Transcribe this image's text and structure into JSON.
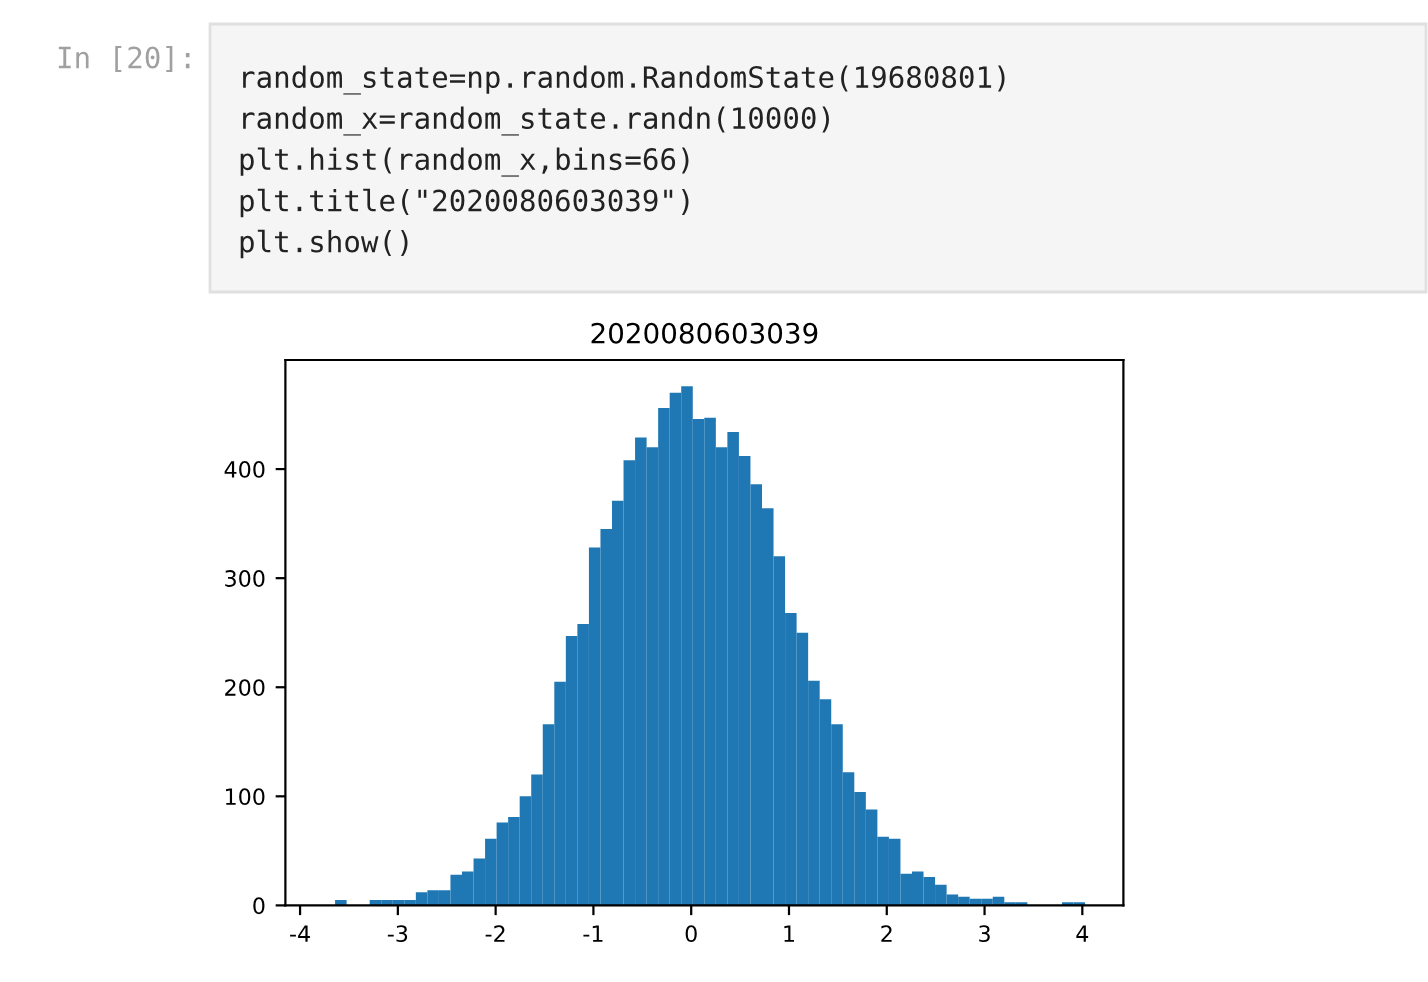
{
  "chart_data": {
    "type": "histogram",
    "title": "2020080603039",
    "annotations": [
      "In [20]:",
      "random_state=np.random.RandomState(19680801)",
      "random_x=random_state.randn(10000)",
      "plt.hist(random_x,bins=66)",
      "plt.title(\"2020080603039\")",
      "plt.show()"
    ],
    "bins": [
      -3.76,
      -3.642,
      -3.524,
      -3.406,
      -3.288,
      -3.17,
      -3.052,
      -2.934,
      -2.816,
      -2.698,
      -2.58,
      -2.462,
      -2.344,
      -2.226,
      -2.108,
      -1.99,
      -1.872,
      -1.754,
      -1.636,
      -1.518,
      -1.4,
      -1.282,
      -1.164,
      -1.046,
      -0.928,
      -0.81,
      -0.692,
      -0.574,
      -0.456,
      -0.338,
      -0.22,
      -0.102,
      0.016,
      0.134,
      0.252,
      0.37,
      0.488,
      0.606,
      0.724,
      0.842,
      0.96,
      1.078,
      1.196,
      1.314,
      1.432,
      1.55,
      1.668,
      1.786,
      1.904,
      2.022,
      2.14,
      2.258,
      2.376,
      2.494,
      2.612,
      2.73,
      2.848,
      2.966,
      3.084,
      3.202,
      3.32,
      3.438,
      3.556,
      3.674,
      3.792,
      3.91,
      4.028
    ],
    "values": [
      null,
      5,
      null,
      null,
      5,
      5,
      5,
      5,
      12,
      14,
      14,
      28,
      31,
      43,
      61,
      76,
      81,
      100,
      120,
      166,
      205,
      247,
      258,
      328,
      345,
      371,
      408,
      429,
      420,
      456,
      470,
      476,
      446,
      447,
      420,
      434,
      412,
      386,
      364,
      320,
      268,
      250,
      206,
      189,
      166,
      122,
      104,
      88,
      63,
      61,
      29,
      31,
      26,
      19,
      10,
      8,
      6,
      6,
      8,
      3,
      3,
      0,
      0,
      0,
      3,
      3
    ],
    "color": "#1f77b4",
    "xlim": [
      -4.15,
      4.42
    ],
    "ylim": [
      0,
      500
    ],
    "xticks": [
      -4,
      -3,
      -2,
      -1,
      0,
      1,
      2,
      3,
      4
    ],
    "yticks": [
      0,
      100,
      200,
      300,
      400
    ],
    "grid": false
  }
}
